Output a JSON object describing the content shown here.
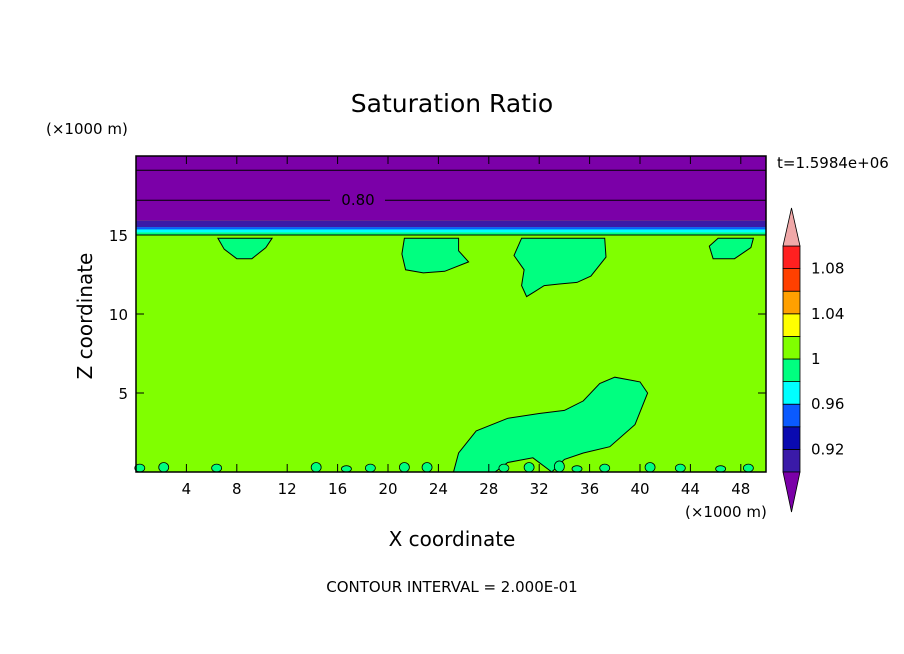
{
  "chart_data": {
    "type": "heatmap",
    "subtype": "filled contour",
    "title": "Saturation Ratio",
    "time_label": "t=1.5984e+06",
    "xlabel": "X coordinate",
    "ylabel": "Z coordinate",
    "x_unit": "(×1000 m)",
    "y_unit": "(×1000 m)",
    "xlim": [
      0,
      50
    ],
    "ylim": [
      0,
      20
    ],
    "x_ticks": [
      4,
      8,
      12,
      16,
      20,
      24,
      28,
      32,
      36,
      40,
      44,
      48
    ],
    "y_ticks": [
      5,
      10,
      15
    ],
    "footer": "CONTOUR INTERVAL = 2.000E-01",
    "contour_line_label": "0.80",
    "colorbar": {
      "levels": [
        0.9,
        0.92,
        0.94,
        0.96,
        0.98,
        1.0,
        1.02,
        1.04,
        1.06,
        1.08,
        1.1
      ],
      "tick_labels": [
        "0.92",
        "0.96",
        "1",
        "1.04",
        "1.08"
      ],
      "tick_values": [
        0.92,
        0.96,
        1.0,
        1.04,
        1.08
      ],
      "colors": [
        "#7b00a8",
        "#3a1aa8",
        "#0a0ab0",
        "#0a5aff",
        "#00ffff",
        "#00ff80",
        "#80ff00",
        "#ffff00",
        "#ffa000",
        "#ff4000",
        "#ff2020",
        "#f0a8a8"
      ],
      "under_color": "#7b00a8",
      "over_color": "#f0a8a8"
    },
    "fields": {
      "background_level_color": "#80ff00",
      "upper_layer_color": "#7b00a8",
      "layer_bands": [
        {
          "z_from": 15.9,
          "z_to": 20.0,
          "color": "#7b00a8"
        },
        {
          "z_from": 15.5,
          "z_to": 15.9,
          "color": "#3a1aa8"
        },
        {
          "z_from": 15.35,
          "z_to": 15.5,
          "color": "#0a5aff"
        },
        {
          "z_from": 15.15,
          "z_to": 15.35,
          "color": "#00ffff"
        },
        {
          "z_from": 15.0,
          "z_to": 15.15,
          "color": "#00ff80"
        }
      ],
      "contour_lines_z": [
        19.1,
        17.2
      ],
      "patches": [
        {
          "name": "lower-plume",
          "color": "#00ff80",
          "polygon": [
            [
              25.2,
              0
            ],
            [
              25.6,
              1.2
            ],
            [
              27,
              2.6
            ],
            [
              29.5,
              3.4
            ],
            [
              32,
              3.7
            ],
            [
              34,
              3.9
            ],
            [
              35.5,
              4.5
            ],
            [
              36.8,
              5.6
            ],
            [
              38,
              6.0
            ],
            [
              40,
              5.7
            ],
            [
              40.6,
              5.0
            ],
            [
              39.6,
              3.0
            ],
            [
              37.6,
              1.6
            ],
            [
              35.5,
              1.2
            ],
            [
              34,
              0.8
            ],
            [
              33,
              0
            ],
            [
              31.5,
              0.9
            ],
            [
              29.5,
              0.6
            ],
            [
              28.5,
              0
            ]
          ]
        },
        {
          "name": "upper-patch-1",
          "color": "#00ff80",
          "polygon": [
            [
              6.5,
              14.8
            ],
            [
              7,
              14.1
            ],
            [
              8,
              13.5
            ],
            [
              9.2,
              13.5
            ],
            [
              10.3,
              14.2
            ],
            [
              10.8,
              14.8
            ]
          ]
        },
        {
          "name": "upper-patch-2",
          "color": "#00ff80",
          "polygon": [
            [
              21.3,
              14.8
            ],
            [
              21.1,
              13.8
            ],
            [
              21.4,
              12.8
            ],
            [
              22.8,
              12.6
            ],
            [
              24.5,
              12.7
            ],
            [
              26.4,
              13.3
            ],
            [
              25.6,
              14.0
            ],
            [
              25.6,
              14.8
            ]
          ]
        },
        {
          "name": "upper-patch-3",
          "color": "#00ff80",
          "polygon": [
            [
              37.2,
              14.8
            ],
            [
              37.3,
              13.6
            ],
            [
              36.1,
              12.4
            ],
            [
              35,
              12.0
            ],
            [
              33.6,
              11.9
            ],
            [
              32.4,
              11.8
            ],
            [
              31.6,
              11.4
            ],
            [
              31,
              11.1
            ],
            [
              30.6,
              11.8
            ],
            [
              30.8,
              12.8
            ],
            [
              30,
              13.7
            ],
            [
              30.6,
              14.8
            ]
          ]
        },
        {
          "name": "upper-patch-4",
          "color": "#00ff80",
          "polygon": [
            [
              46.2,
              14.8
            ],
            [
              45.5,
              14.3
            ],
            [
              45.8,
              13.5
            ],
            [
              47.5,
              13.5
            ],
            [
              48.8,
              14.2
            ],
            [
              49,
              14.8
            ]
          ]
        }
      ],
      "surface_spots": [
        [
          0.3,
          0.5
        ],
        [
          2.2,
          0.6
        ],
        [
          6.4,
          0.5
        ],
        [
          14.3,
          0.6
        ],
        [
          16.7,
          0.4
        ],
        [
          18.6,
          0.5
        ],
        [
          21.3,
          0.6
        ],
        [
          23.1,
          0.6
        ],
        [
          29.2,
          0.5
        ],
        [
          31.2,
          0.6
        ],
        [
          33.6,
          0.7
        ],
        [
          35,
          0.4
        ],
        [
          37.2,
          0.5
        ],
        [
          40.8,
          0.6
        ],
        [
          43.2,
          0.5
        ],
        [
          46.4,
          0.4
        ],
        [
          48.6,
          0.5
        ]
      ]
    }
  }
}
